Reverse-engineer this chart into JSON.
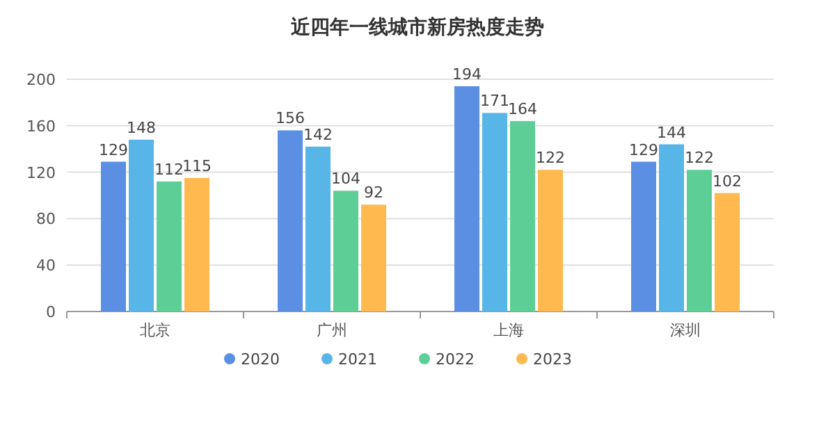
{
  "chart_data": {
    "type": "bar",
    "title": "近四年一线城市新房热度走势",
    "categories": [
      "北京",
      "广州",
      "上海",
      "深圳"
    ],
    "series": [
      {
        "name": "2020",
        "color": "#5b8fe3",
        "values": [
          129,
          156,
          194,
          129
        ]
      },
      {
        "name": "2021",
        "color": "#57b5e8",
        "values": [
          148,
          142,
          171,
          144
        ]
      },
      {
        "name": "2022",
        "color": "#5dcf96",
        "values": [
          112,
          104,
          164,
          122
        ]
      },
      {
        "name": "2023",
        "color": "#ffb94f",
        "values": [
          115,
          92,
          122,
          102
        ]
      }
    ],
    "ylim": [
      0,
      200
    ],
    "yticks": [
      0,
      40,
      80,
      120,
      160,
      200
    ],
    "grid": "y",
    "legend": "bottom",
    "data_labels": true
  }
}
